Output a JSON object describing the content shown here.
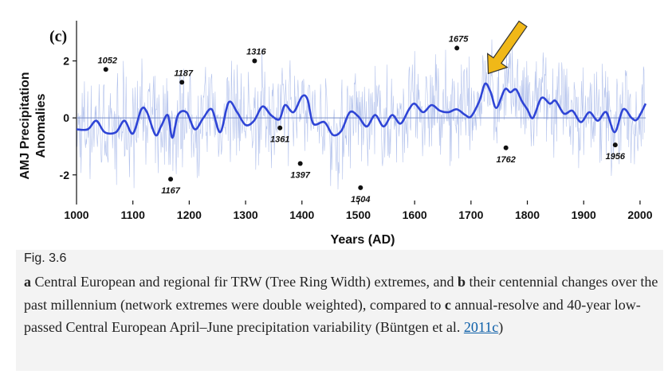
{
  "chart_data": {
    "type": "line",
    "panel_label": "(c)",
    "xlabel": "Years (AD)",
    "ylabel_lines": [
      "AMJ Precipitation",
      "Anomalies"
    ],
    "xlim": [
      1000,
      2010
    ],
    "ylim": [
      -2.9,
      3.3
    ],
    "x_ticks": [
      1000,
      1100,
      1200,
      1300,
      1400,
      1500,
      1600,
      1700,
      1800,
      1900,
      2000
    ],
    "y_ticks": [
      2,
      0,
      -2
    ],
    "zero_line": true,
    "series": [
      {
        "color": "#2f45d6",
        "x": [
          1000,
          1020,
          1035,
          1050,
          1070,
          1085,
          1100,
          1115,
          1125,
          1140,
          1150,
          1162,
          1170,
          1180,
          1195,
          1210,
          1225,
          1240,
          1255,
          1270,
          1285,
          1300,
          1315,
          1330,
          1345,
          1360,
          1370,
          1385,
          1400,
          1410,
          1420,
          1440,
          1455,
          1470,
          1485,
          1500,
          1515,
          1530,
          1545,
          1560,
          1575,
          1590,
          1600,
          1615,
          1630,
          1645,
          1660,
          1675,
          1690,
          1700,
          1715,
          1725,
          1735,
          1745,
          1760,
          1770,
          1780,
          1790,
          1800,
          1810,
          1825,
          1840,
          1850,
          1865,
          1880,
          1895,
          1910,
          1925,
          1940,
          1955,
          1970,
          1985,
          1995,
          2010
        ],
        "y": [
          -0.4,
          -0.4,
          -0.1,
          -0.5,
          -0.5,
          -0.1,
          -0.55,
          0.3,
          0.2,
          -0.6,
          -0.3,
          0.1,
          -0.7,
          0.1,
          0.2,
          -0.4,
          0.0,
          0.3,
          -0.5,
          0.55,
          0.2,
          -0.25,
          -0.1,
          0.4,
          0.1,
          -0.05,
          0.45,
          0.2,
          0.75,
          0.65,
          -0.2,
          -0.15,
          -0.6,
          -0.45,
          0.2,
          0.05,
          -0.3,
          0.1,
          -0.3,
          0.1,
          -0.2,
          0.3,
          0.5,
          0.2,
          0.45,
          0.25,
          0.2,
          0.3,
          0.1,
          0.05,
          0.6,
          1.2,
          0.9,
          0.35,
          1.0,
          0.9,
          1.0,
          0.6,
          0.3,
          0.0,
          0.7,
          0.5,
          0.6,
          0.15,
          0.25,
          -0.15,
          0.2,
          -0.1,
          0.2,
          -0.5,
          0.3,
          0.0,
          -0.05,
          0.5
        ]
      }
    ],
    "annual_noise_color": "#9aaee6",
    "extreme_years": [
      {
        "year": 1052,
        "value": 1.7,
        "label": "1052"
      },
      {
        "year": 1167,
        "value": -2.15,
        "label": "1167"
      },
      {
        "year": 1187,
        "value": 1.25,
        "label": "1187"
      },
      {
        "year": 1316,
        "value": 2.0,
        "label": "1316"
      },
      {
        "year": 1361,
        "value": -0.35,
        "label": "1361"
      },
      {
        "year": 1397,
        "value": -1.6,
        "label": "1397"
      },
      {
        "year": 1504,
        "value": -2.45,
        "label": "1504"
      },
      {
        "year": 1675,
        "value": 2.45,
        "label": "1675"
      },
      {
        "year": 1762,
        "value": -1.05,
        "label": "1762"
      },
      {
        "year": 1956,
        "value": -0.95,
        "label": "1956"
      }
    ],
    "highlight_arrow": {
      "target_year": 1725,
      "target_value": 1.5,
      "color": "#f0b818"
    }
  },
  "caption": {
    "fig_number": "Fig. 3.6",
    "part_a_letter": "a",
    "part_a_text": " Central European and regional fir TRW (Tree Ring Width) extremes, and ",
    "part_b_letter": "b",
    "part_b_text": " their centennial changes over the past millennium (network extremes were double weighted), compared to ",
    "part_c_letter": "c",
    "part_c_text": " annual-resolve and 40-year low-passed Central European April–June precipitation variability (Büntgen et al. ",
    "citation_link": "2011c",
    "closing": ")"
  }
}
